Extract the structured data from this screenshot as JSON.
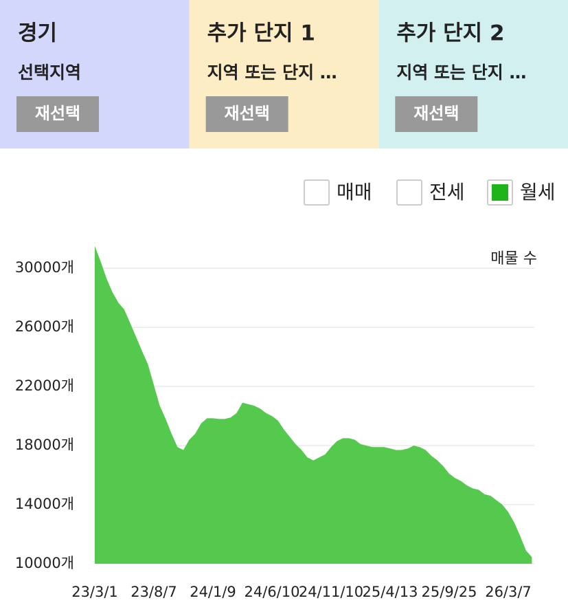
{
  "panels": [
    {
      "title": "경기",
      "title_color": "#3a4de0",
      "background": "#d4d7fc",
      "subtitle": "선택지역",
      "button": "재선택"
    },
    {
      "title": "추가 단지 1",
      "title_color": "#f08a3a",
      "background": "#fdedc4",
      "subtitle": "지역 또는 단지 …",
      "button": "재선택"
    },
    {
      "title": "추가 단지 2",
      "title_color": "#2a9d9a",
      "background": "#d2f0f0",
      "subtitle": "지역 또는 단지 …",
      "button": "재선택"
    }
  ],
  "toggles": [
    {
      "label": "매매",
      "checked": false
    },
    {
      "label": "전세",
      "checked": false
    },
    {
      "label": "월세",
      "checked": true,
      "color": "#1fb41a"
    }
  ],
  "chart_data": {
    "type": "area",
    "y_label": "매물 수",
    "color": "#55c94d",
    "grid": true,
    "categories": [
      "23/3/1",
      null,
      null,
      null,
      null,
      null,
      null,
      null,
      null,
      null,
      "23/8/7",
      null,
      null,
      null,
      null,
      null,
      null,
      null,
      null,
      null,
      "24/1/9",
      null,
      null,
      null,
      null,
      null,
      null,
      null,
      null,
      null,
      "24/6/10",
      null,
      null,
      null,
      null,
      null,
      null,
      null,
      null,
      null,
      "24/11/10",
      null,
      null,
      null,
      null,
      null,
      null,
      null,
      null,
      null,
      "25/4/13",
      null,
      null,
      null,
      null,
      null,
      null,
      null,
      null,
      null,
      "25/9/25",
      null,
      null,
      null,
      null,
      null,
      null,
      null,
      null,
      null,
      "26/3/7",
      null,
      null,
      null,
      null
    ],
    "values": [
      31500,
      30460,
      29300,
      28370,
      27670,
      27200,
      26280,
      25350,
      24400,
      23500,
      22100,
      20700,
      19800,
      18800,
      17900,
      17700,
      18400,
      18800,
      19500,
      19850,
      19850,
      19800,
      19800,
      19900,
      20200,
      20900,
      20800,
      20700,
      20500,
      20200,
      20000,
      19700,
      19100,
      18600,
      18100,
      17700,
      17200,
      17000,
      17200,
      17400,
      17900,
      18300,
      18500,
      18500,
      18400,
      18100,
      18000,
      17900,
      17900,
      17900,
      17800,
      17700,
      17700,
      17800,
      18000,
      17900,
      17700,
      17300,
      17000,
      16600,
      16100,
      15800,
      15600,
      15300,
      15100,
      15000,
      14700,
      14600,
      14300,
      14000,
      13500,
      12800,
      11900,
      10900,
      10450
    ],
    "ylim": [
      10000,
      31500
    ],
    "yticks": [
      {
        "value": 10000,
        "label": "10000개"
      },
      {
        "value": 14000,
        "label": "14000개"
      },
      {
        "value": 18000,
        "label": "18000개"
      },
      {
        "value": 22000,
        "label": "22000개"
      },
      {
        "value": 26000,
        "label": "26000개"
      },
      {
        "value": 30000,
        "label": "30000개"
      }
    ]
  }
}
